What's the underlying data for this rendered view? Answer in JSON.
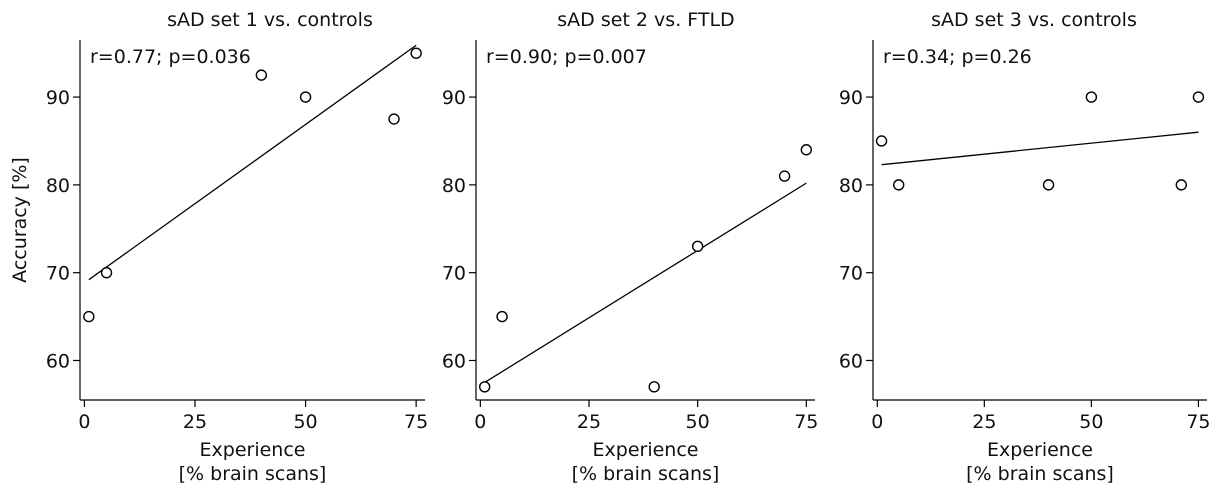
{
  "chart_data": [
    {
      "type": "scatter",
      "title": "sAD set 1 vs. controls",
      "annotation": "r=0.77; p=0.036",
      "xlabel": [
        "Experience",
        "[% brain scans]"
      ],
      "ylabel": "Accuracy [%]",
      "xlim": [
        -1,
        77
      ],
      "ylim": [
        55.5,
        96.5
      ],
      "xticks": [
        0,
        25,
        50,
        75
      ],
      "yticks": [
        60,
        70,
        80,
        90
      ],
      "series": [
        {
          "x": [
            1,
            5,
            40,
            50,
            70,
            75
          ],
          "y": [
            65,
            70,
            92.5,
            90,
            87.5,
            95
          ]
        }
      ],
      "fit": {
        "x": [
          1,
          75
        ],
        "y": [
          69.2,
          95.9
        ]
      }
    },
    {
      "type": "scatter",
      "title": "sAD set 2 vs. FTLD",
      "annotation": "r=0.90; p=0.007",
      "xlabel": [
        "Experience",
        "[% brain scans]"
      ],
      "ylabel": "",
      "xlim": [
        -1,
        77
      ],
      "ylim": [
        55.5,
        96.5
      ],
      "xticks": [
        0,
        25,
        50,
        75
      ],
      "yticks": [
        60,
        70,
        80,
        90
      ],
      "series": [
        {
          "x": [
            1,
            5,
            40,
            50,
            70,
            75
          ],
          "y": [
            57,
            65,
            57,
            73,
            81,
            84
          ]
        }
      ],
      "fit": {
        "x": [
          1,
          75
        ],
        "y": [
          57.5,
          80.2
        ]
      }
    },
    {
      "type": "scatter",
      "title": "sAD set 3 vs. controls",
      "annotation": "r=0.34; p=0.26",
      "xlabel": [
        "Experience",
        "[% brain scans]"
      ],
      "ylabel": "",
      "xlim": [
        -1,
        77
      ],
      "ylim": [
        55.5,
        96.5
      ],
      "xticks": [
        0,
        25,
        50,
        75
      ],
      "yticks": [
        60,
        70,
        80,
        90
      ],
      "series": [
        {
          "x": [
            1,
            5,
            40,
            50,
            71,
            75
          ],
          "y": [
            85,
            80,
            80,
            90,
            80,
            90
          ]
        }
      ],
      "fit": {
        "x": [
          1,
          75
        ],
        "y": [
          82.3,
          86
        ]
      }
    }
  ]
}
